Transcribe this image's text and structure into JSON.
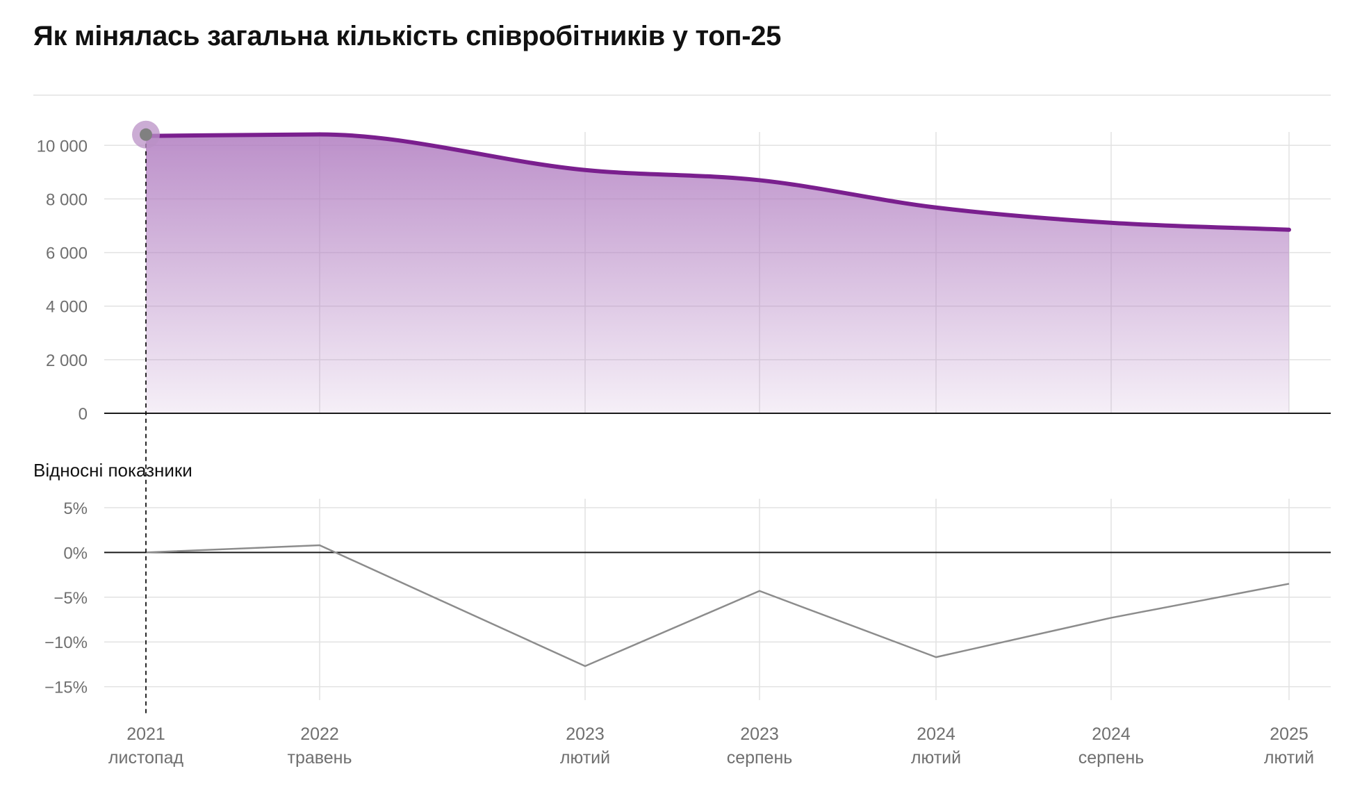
{
  "title": "Як мінялась загальна кількість співробітників у топ-25",
  "colors": {
    "accent": "#7a1f8e",
    "area_fill": "#b07cc0",
    "relative_line": "#8c8c8c",
    "grid": "#e2e2e2",
    "axis": "#1a1a1a",
    "text": "#111111",
    "tick_text": "#6f6f6f",
    "highlight_dot": "#808080",
    "highlight_halo": "#b990c6"
  },
  "chart_data": [
    {
      "type": "area",
      "x": [
        "2021 листопад",
        "2022 травень",
        "2023 лютий",
        "2023 серпень",
        "2024 лютий",
        "2024 серпень",
        "2025 лютий"
      ],
      "x_labels": [
        {
          "year": "2021",
          "month": "листопад"
        },
        {
          "year": "2022",
          "month": "травень"
        },
        {
          "year": "2023",
          "month": "лютий"
        },
        {
          "year": "2023",
          "month": "серпень"
        },
        {
          "year": "2024",
          "month": "лютий"
        },
        {
          "year": "2024",
          "month": "серпень"
        },
        {
          "year": "2025",
          "month": "лютий"
        }
      ],
      "values": [
        10350,
        10410,
        9080,
        8700,
        7680,
        7110,
        6850
      ],
      "ylim": [
        0,
        10500
      ],
      "y_ticks": [
        0,
        2000,
        4000,
        6000,
        8000,
        10000
      ],
      "y_tick_labels": [
        "0",
        "2 000",
        "4 000",
        "6 000",
        "8 000",
        "10 000"
      ],
      "grid": true,
      "highlighted_point": "2021 листопад"
    },
    {
      "type": "line",
      "title": "Відносні показники",
      "x": [
        "2021 листопад",
        "2022 травень",
        "2023 лютий",
        "2023 серпень",
        "2024 лютий",
        "2024 серпень",
        "2025 лютий"
      ],
      "values": [
        0,
        0.8,
        -12.7,
        -4.3,
        -11.7,
        -7.3,
        -3.5
      ],
      "ylim": [
        -16.5,
        6
      ],
      "y_ticks": [
        5,
        0,
        -5,
        -10,
        -15
      ],
      "y_tick_labels": [
        "5%",
        "0%",
        "−5%",
        "−10%",
        "−15%"
      ],
      "grid": true
    }
  ]
}
